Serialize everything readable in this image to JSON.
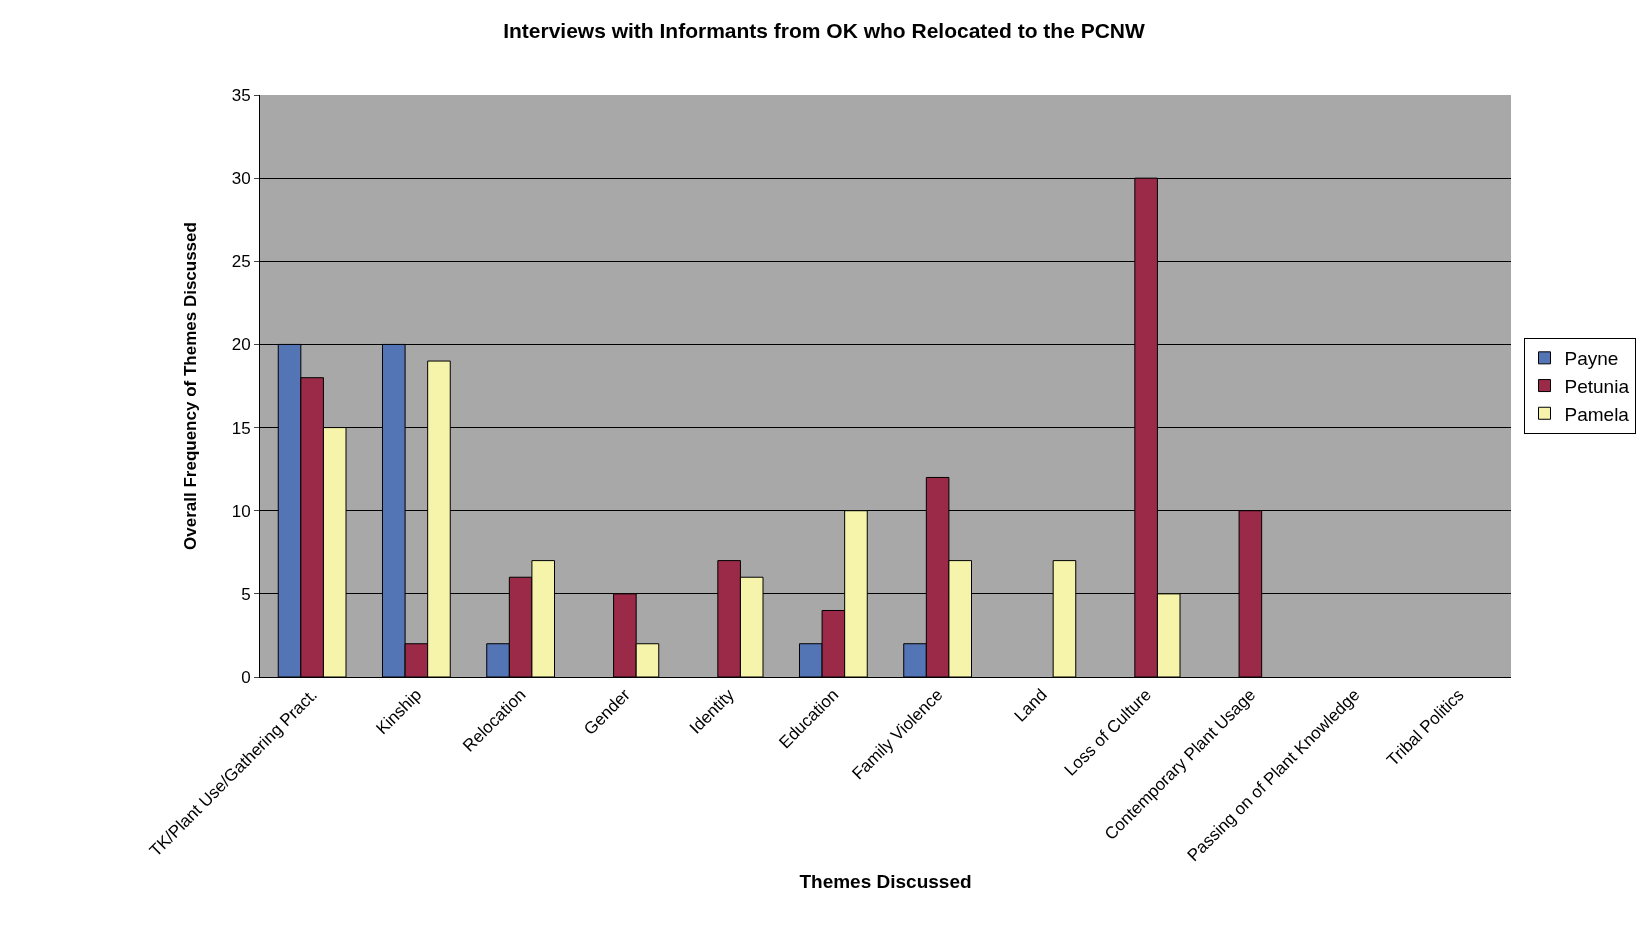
{
  "chart_data": {
    "type": "bar",
    "title": "Interviews with Informants from OK who Relocated to the PCNW",
    "xlabel": "Themes Discussed",
    "ylabel": "Overall Frequency of Themes Discussed",
    "categories": [
      "TK/Plant Use/Gathering Pract.",
      "Kinship",
      "Relocation",
      "Gender",
      "Identity",
      "Education",
      "Family Violence",
      "Land",
      "Loss of Culture",
      "Contemporary Plant Usage",
      "Passing on of Plant Knowledge",
      "Tribal Politics"
    ],
    "series": [
      {
        "name": "Payne",
        "color": "#5475b5",
        "values": [
          20,
          20,
          2,
          null,
          null,
          2,
          2,
          null,
          null,
          null,
          null,
          null
        ]
      },
      {
        "name": "Petunia",
        "color": "#9a2a48",
        "values": [
          18,
          2,
          6,
          5,
          7,
          4,
          12,
          null,
          30,
          10,
          null,
          null
        ]
      },
      {
        "name": "Pamela",
        "color": "#f6f3aa",
        "values": [
          15,
          19,
          7,
          2,
          6,
          10,
          7,
          7,
          5,
          null,
          null,
          null
        ]
      }
    ],
    "ylim": [
      0,
      35
    ],
    "yticks": [
      0,
      5,
      10,
      15,
      20,
      25,
      30,
      35
    ],
    "grid": "y",
    "legend": "right"
  }
}
